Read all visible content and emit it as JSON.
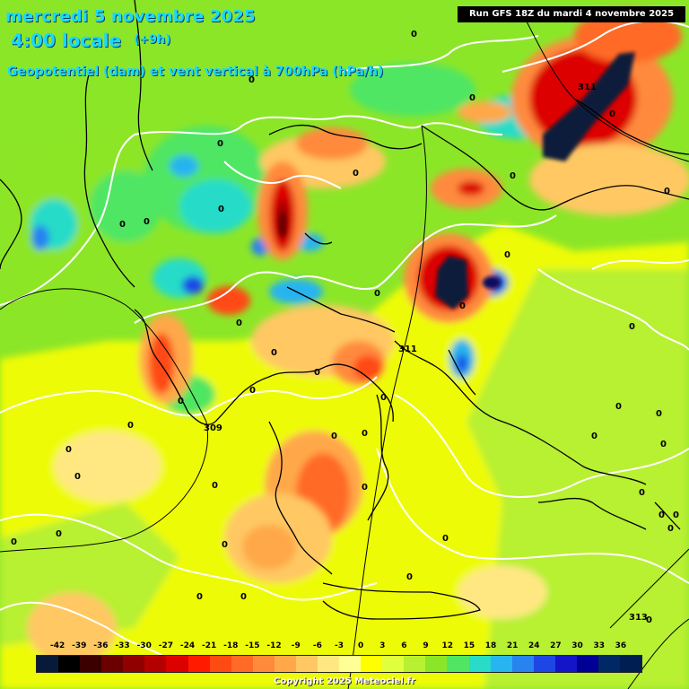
{
  "header": {
    "date_line": "mercredi 5 novembre 2025",
    "time_line": "4:00 locale",
    "offset": "(+9h)",
    "parameter": "Geopotentiel (dam) et vent vertical à 700hPa (hPa/h)",
    "run_info": "Run GFS 18Z du mardi 4 novembre 2025"
  },
  "legend": {
    "unit": "hPa/h",
    "ticks": [
      "-42",
      "-39",
      "-36",
      "-33",
      "-30",
      "-27",
      "-24",
      "-21",
      "-18",
      "-15",
      "-12",
      "-9",
      "-6",
      "-3",
      "0",
      "3",
      "6",
      "9",
      "12",
      "15",
      "18",
      "21",
      "24",
      "27",
      "30",
      "33",
      "36"
    ],
    "colors": [
      "#071a3a",
      "#000000",
      "#3a0000",
      "#6a0000",
      "#900000",
      "#b40000",
      "#dc0000",
      "#ff1a00",
      "#ff4a14",
      "#ff6a28",
      "#ff8a3c",
      "#ffa84a",
      "#ffc864",
      "#ffe882",
      "#ffff96",
      "#ffff00",
      "#e0ff3c",
      "#b8f032",
      "#8ce628",
      "#50e664",
      "#28dcc8",
      "#28b4f0",
      "#2882f0",
      "#1e46e6",
      "#1414c8",
      "#000096",
      "#002864",
      "#001e50"
    ]
  },
  "geopotential_labels": [
    "311",
    "311",
    "309",
    "313"
  ],
  "vertical_wind_labels": [
    "0"
  ],
  "colors": {
    "title": "#1ad9ff",
    "zero_contour": "#ffffff",
    "coastline": "#000000",
    "strong_ascent": "#071a3a",
    "strong_descent": "#0a0a60"
  },
  "footer": {
    "copyright": "Copyright 2025 Meteociel.fr"
  }
}
